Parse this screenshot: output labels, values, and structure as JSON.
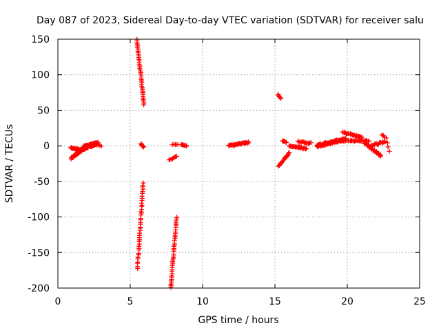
{
  "chart_data": {
    "type": "scatter",
    "title": "Day 087 of 2023, Sidereal Day-to-day VTEC variation (SDTVAR) for receiver salu",
    "xlabel": "GPS time / hours",
    "ylabel": "SDTVAR / TECUs",
    "xlim": [
      0,
      25
    ],
    "ylim": [
      -200,
      150
    ],
    "xticks": [
      0,
      5,
      10,
      15,
      20,
      25
    ],
    "yticks": [
      -200,
      -150,
      -100,
      -50,
      0,
      50,
      100,
      150
    ],
    "grid": true,
    "marker": "+",
    "marker_color": "#ff0000",
    "series": [
      {
        "name": "SDTVAR",
        "segments": [
          {
            "x0": 0.9,
            "x1": 1.8,
            "y0": -18,
            "y1": -3,
            "n": 40,
            "jitter": 3
          },
          {
            "x0": 0.9,
            "x1": 1.6,
            "y0": -3,
            "y1": -6,
            "n": 20,
            "jitter": 2
          },
          {
            "x0": 1.3,
            "x1": 2.7,
            "y0": -8,
            "y1": 3,
            "n": 50,
            "jitter": 3
          },
          {
            "x0": 1.8,
            "x1": 2.8,
            "y0": -1,
            "y1": 5,
            "n": 25,
            "jitter": 2
          },
          {
            "x0": 2.6,
            "x1": 3.0,
            "y0": 2,
            "y1": 0,
            "n": 5,
            "jitter": 1
          },
          {
            "x0": 5.45,
            "x1": 5.95,
            "y0": 150,
            "y1": 58,
            "n": 40,
            "jitter": 1
          },
          {
            "x0": 5.75,
            "x1": 5.95,
            "y0": 3,
            "y1": -2,
            "n": 8,
            "jitter": 1
          },
          {
            "x0": 5.9,
            "x1": 5.5,
            "y0": -52,
            "y1": -172,
            "n": 40,
            "jitter": 2
          },
          {
            "x0": 8.2,
            "x1": 7.8,
            "y0": -100,
            "y1": -200,
            "n": 40,
            "jitter": 2
          },
          {
            "x0": 7.7,
            "x1": 8.2,
            "y0": -20,
            "y1": -15,
            "n": 8,
            "jitter": 1
          },
          {
            "x0": 7.9,
            "x1": 8.3,
            "y0": 2,
            "y1": 2,
            "n": 5,
            "jitter": 1
          },
          {
            "x0": 8.5,
            "x1": 8.9,
            "y0": 2,
            "y1": 0,
            "n": 8,
            "jitter": 1
          },
          {
            "x0": 11.8,
            "x1": 13.2,
            "y0": 0,
            "y1": 5,
            "n": 35,
            "jitter": 2
          },
          {
            "x0": 15.2,
            "x1": 15.4,
            "y0": 72,
            "y1": 67,
            "n": 5,
            "jitter": 1
          },
          {
            "x0": 15.5,
            "x1": 15.8,
            "y0": 7,
            "y1": 5,
            "n": 6,
            "jitter": 1
          },
          {
            "x0": 15.25,
            "x1": 16.0,
            "y0": -28,
            "y1": -10,
            "n": 20,
            "jitter": 2
          },
          {
            "x0": 16.0,
            "x1": 17.2,
            "y0": 0,
            "y1": -4,
            "n": 25,
            "jitter": 2
          },
          {
            "x0": 16.6,
            "x1": 17.5,
            "y0": 6,
            "y1": 4,
            "n": 15,
            "jitter": 2
          },
          {
            "x0": 17.9,
            "x1": 19.7,
            "y0": -1,
            "y1": 8,
            "n": 45,
            "jitter": 2
          },
          {
            "x0": 17.9,
            "x1": 19.9,
            "y0": 1,
            "y1": 10,
            "n": 40,
            "jitter": 2
          },
          {
            "x0": 19.7,
            "x1": 21.0,
            "y0": 19,
            "y1": 12,
            "n": 25,
            "jitter": 2
          },
          {
            "x0": 19.5,
            "x1": 21.5,
            "y0": 7,
            "y1": 7,
            "n": 30,
            "jitter": 1
          },
          {
            "x0": 21.2,
            "x1": 22.3,
            "y0": 4,
            "y1": -14,
            "n": 30,
            "jitter": 3
          },
          {
            "x0": 21.6,
            "x1": 22.6,
            "y0": 0,
            "y1": 6,
            "n": 20,
            "jitter": 3
          },
          {
            "x0": 22.4,
            "x1": 22.6,
            "y0": 16,
            "y1": 12,
            "n": 4,
            "jitter": 1
          },
          {
            "x0": 22.7,
            "x1": 22.9,
            "y0": 11,
            "y1": -8,
            "n": 4,
            "jitter": 1
          }
        ]
      }
    ]
  }
}
